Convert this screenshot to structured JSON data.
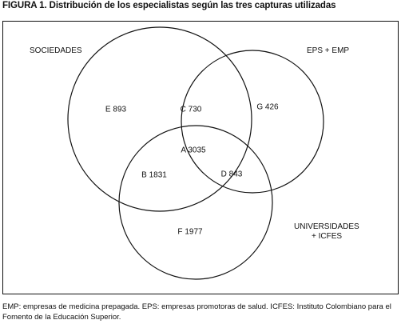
{
  "title": "FIGURA 1. Distribución de los especialistas según las tres capturas utilizadas",
  "sets": {
    "sociedades": "SOCIEDADES",
    "eps_emp": "EPS + EMP",
    "universidades_line1": "UNIVERSIDADES",
    "universidades_line2": "+ ICFES"
  },
  "regions": {
    "e": "E 893",
    "c": "C 730",
    "g": "G 426",
    "a": "A 3035",
    "b": "B 1831",
    "d": "D 843",
    "f": "F 1977"
  },
  "footnote": "EMP:  empresas de medicina prepagada. EPS: empresas promotoras de salud. ICFES: Instituto Colombiano para el Fomento de la Educación Superior."
}
